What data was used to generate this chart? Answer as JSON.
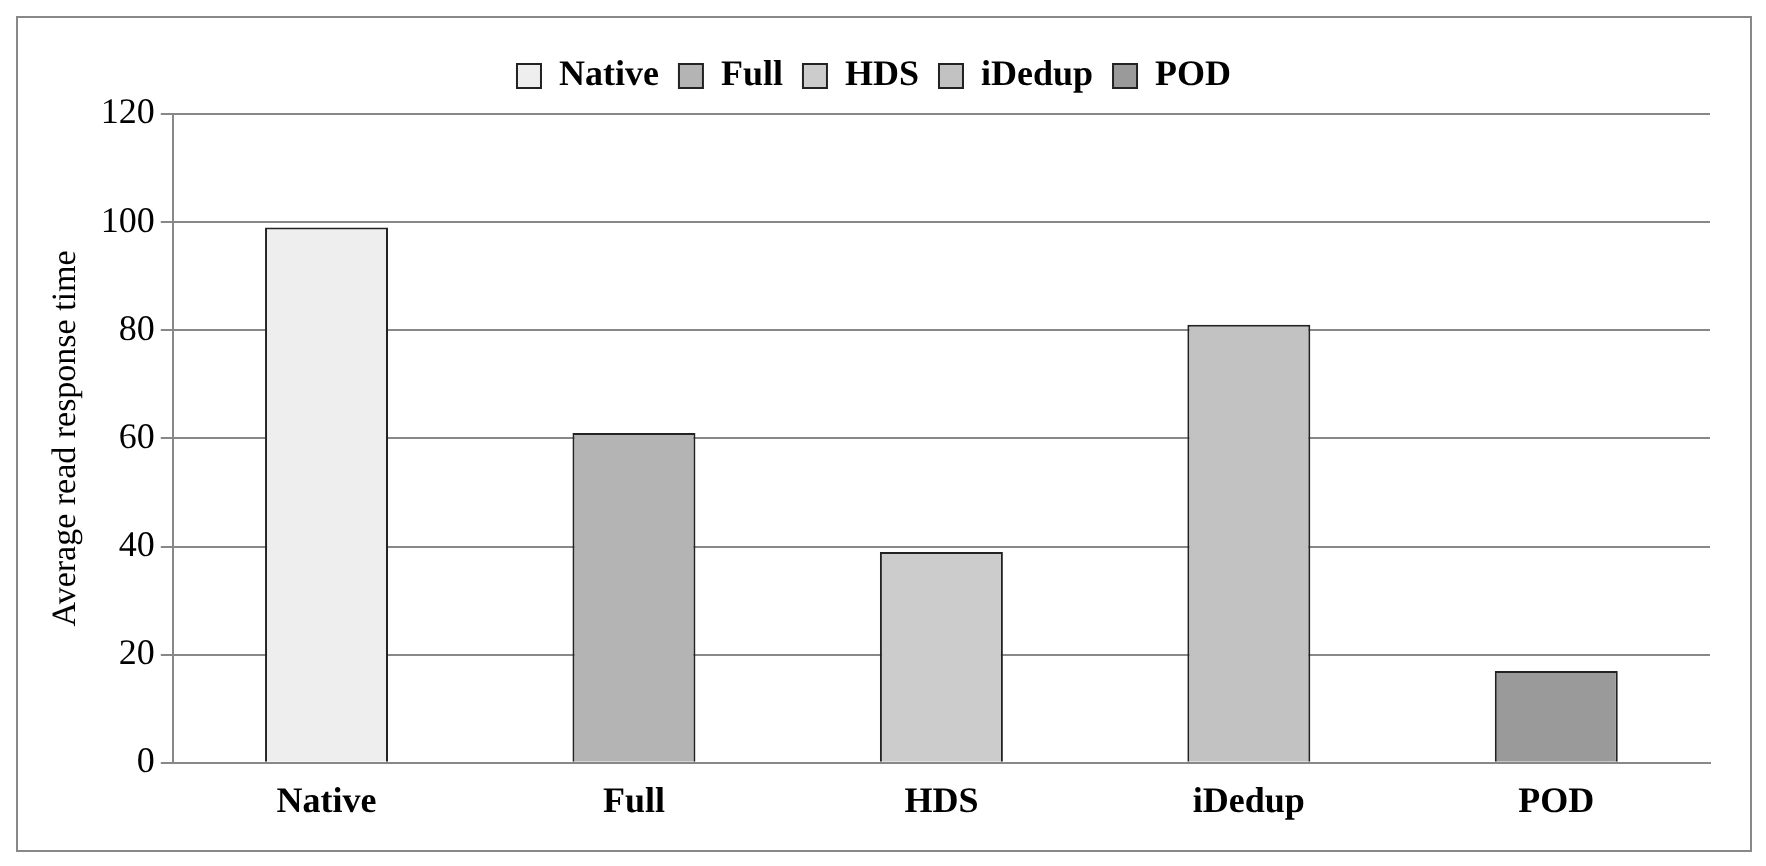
{
  "chart_data": {
    "type": "bar",
    "ylabel": "Average read response time",
    "categories": [
      "Native",
      "Full",
      "HDS",
      "iDedup",
      "POD"
    ],
    "series": [
      {
        "name": "Native",
        "color": "#eeeeee",
        "values": [
          99,
          null,
          null,
          null,
          null
        ]
      },
      {
        "name": "Full",
        "color": "#b4b4b4",
        "values": [
          null,
          61,
          null,
          null,
          null
        ]
      },
      {
        "name": "HDS",
        "color": "#cccccc",
        "values": [
          null,
          null,
          39,
          null,
          null
        ]
      },
      {
        "name": "iDedup",
        "color": "#c2c2c2",
        "values": [
          null,
          null,
          null,
          81,
          null
        ]
      },
      {
        "name": "POD",
        "color": "#9a9a9a",
        "values": [
          null,
          null,
          null,
          null,
          17
        ]
      }
    ],
    "ylim": [
      0,
      120
    ],
    "yticks": [
      0,
      20,
      40,
      60,
      80,
      100,
      120
    ],
    "grid": "y",
    "legend": "top"
  }
}
